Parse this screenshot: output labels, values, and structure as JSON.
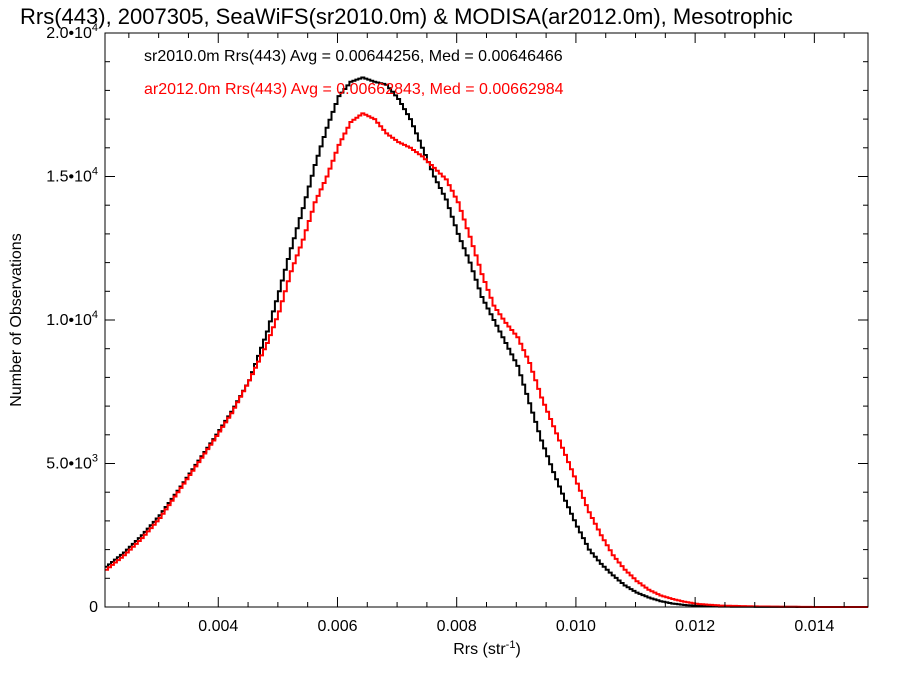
{
  "chart_data": {
    "type": "line",
    "title": "Rrs(443), 2007305, SeaWiFS(sr2010.0m) & MODISA(ar2012.0m), Mesotrophic",
    "xlabel_base": "Rrs (str",
    "xlabel_sup": "-1",
    "xlabel_end": ")",
    "ylabel": "Number of Observations",
    "xlim": [
      0.0021,
      0.0149
    ],
    "ylim": [
      0,
      20000
    ],
    "x_ticks": [
      {
        "value": 0.004,
        "label": "0.004"
      },
      {
        "value": 0.006,
        "label": "0.006"
      },
      {
        "value": 0.008,
        "label": "0.008"
      },
      {
        "value": 0.01,
        "label": "0.010"
      },
      {
        "value": 0.012,
        "label": "0.012"
      },
      {
        "value": 0.014,
        "label": "0.014"
      }
    ],
    "y_ticks": [
      {
        "value": 0,
        "mant": "0",
        "exp": ""
      },
      {
        "value": 5000,
        "mant": "5.0•10",
        "exp": "3"
      },
      {
        "value": 10000,
        "mant": "1.0•10",
        "exp": "4"
      },
      {
        "value": 15000,
        "mant": "1.5•10",
        "exp": "4"
      },
      {
        "value": 20000,
        "mant": "2.0•10",
        "exp": "4"
      }
    ],
    "series": [
      {
        "name": "sr2010.0m",
        "legend_text": "sr2010.0m Rrs(443) Avg = 0.00644256, Med = 0.00646466",
        "color": "#000000",
        "points": [
          [
            0.0021,
            1400
          ],
          [
            0.0024,
            1900
          ],
          [
            0.0027,
            2500
          ],
          [
            0.003,
            3200
          ],
          [
            0.0033,
            4050
          ],
          [
            0.0036,
            4950
          ],
          [
            0.0039,
            5850
          ],
          [
            0.0042,
            6800
          ],
          [
            0.0045,
            7900
          ],
          [
            0.0048,
            9600
          ],
          [
            0.005,
            11000
          ],
          [
            0.0052,
            12500
          ],
          [
            0.0054,
            13900
          ],
          [
            0.0056,
            15400
          ],
          [
            0.0058,
            16700
          ],
          [
            0.006,
            17800
          ],
          [
            0.0062,
            18300
          ],
          [
            0.0064,
            18450
          ],
          [
            0.0066,
            18300
          ],
          [
            0.0068,
            18200
          ],
          [
            0.007,
            17700
          ],
          [
            0.0072,
            17000
          ],
          [
            0.0074,
            16000
          ],
          [
            0.0076,
            15000
          ],
          [
            0.0078,
            14200
          ],
          [
            0.008,
            13000
          ],
          [
            0.0082,
            12000
          ],
          [
            0.0084,
            10800
          ],
          [
            0.0086,
            10000
          ],
          [
            0.0088,
            9200
          ],
          [
            0.009,
            8400
          ],
          [
            0.0092,
            7100
          ],
          [
            0.0094,
            5800
          ],
          [
            0.0096,
            4700
          ],
          [
            0.0098,
            3700
          ],
          [
            0.01,
            2800
          ],
          [
            0.0102,
            2000
          ],
          [
            0.0104,
            1500
          ],
          [
            0.0106,
            1100
          ],
          [
            0.0108,
            750
          ],
          [
            0.011,
            500
          ],
          [
            0.0112,
            330
          ],
          [
            0.0114,
            200
          ],
          [
            0.0116,
            120
          ],
          [
            0.0118,
            70
          ],
          [
            0.012,
            40
          ],
          [
            0.0124,
            15
          ],
          [
            0.013,
            5
          ],
          [
            0.014,
            0
          ],
          [
            0.0149,
            0
          ]
        ]
      },
      {
        "name": "ar2012.0m",
        "legend_text": "ar2012.0m Rrs(443) Avg = 0.00662843, Med = 0.00662984",
        "color": "#ff0000",
        "points": [
          [
            0.0021,
            1300
          ],
          [
            0.0024,
            1800
          ],
          [
            0.0027,
            2400
          ],
          [
            0.003,
            3100
          ],
          [
            0.0033,
            4000
          ],
          [
            0.0036,
            4900
          ],
          [
            0.0039,
            5800
          ],
          [
            0.0042,
            6750
          ],
          [
            0.0045,
            7900
          ],
          [
            0.0048,
            9200
          ],
          [
            0.005,
            10300
          ],
          [
            0.0052,
            11700
          ],
          [
            0.0054,
            12800
          ],
          [
            0.0056,
            14100
          ],
          [
            0.0058,
            15000
          ],
          [
            0.006,
            16100
          ],
          [
            0.0062,
            16900
          ],
          [
            0.0064,
            17200
          ],
          [
            0.0066,
            17000
          ],
          [
            0.0068,
            16500
          ],
          [
            0.007,
            16200
          ],
          [
            0.0072,
            16000
          ],
          [
            0.0074,
            15700
          ],
          [
            0.0076,
            15300
          ],
          [
            0.0078,
            14900
          ],
          [
            0.008,
            14100
          ],
          [
            0.0082,
            12900
          ],
          [
            0.0084,
            11600
          ],
          [
            0.0086,
            10500
          ],
          [
            0.0088,
            9900
          ],
          [
            0.009,
            9400
          ],
          [
            0.0092,
            8500
          ],
          [
            0.0094,
            7300
          ],
          [
            0.0096,
            6300
          ],
          [
            0.0098,
            5300
          ],
          [
            0.01,
            4300
          ],
          [
            0.0102,
            3300
          ],
          [
            0.0104,
            2500
          ],
          [
            0.0106,
            1800
          ],
          [
            0.0108,
            1300
          ],
          [
            0.011,
            900
          ],
          [
            0.0112,
            600
          ],
          [
            0.0114,
            400
          ],
          [
            0.0116,
            280
          ],
          [
            0.0118,
            180
          ],
          [
            0.012,
            110
          ],
          [
            0.0124,
            50
          ],
          [
            0.013,
            20
          ],
          [
            0.014,
            0
          ],
          [
            0.0149,
            0
          ]
        ]
      }
    ],
    "grid": false
  }
}
